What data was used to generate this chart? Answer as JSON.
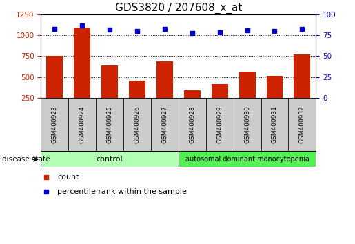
{
  "title": "GDS3820 / 207608_x_at",
  "samples": [
    "GSM400923",
    "GSM400924",
    "GSM400925",
    "GSM400926",
    "GSM400927",
    "GSM400928",
    "GSM400929",
    "GSM400930",
    "GSM400931",
    "GSM400932"
  ],
  "counts": [
    750,
    1090,
    635,
    455,
    690,
    335,
    415,
    560,
    510,
    770
  ],
  "percentiles": [
    83,
    87,
    82,
    80,
    83,
    78,
    79,
    81,
    80,
    83
  ],
  "control_samples": 5,
  "disease_samples": 5,
  "left_ylim": [
    250,
    1250
  ],
  "left_yticks": [
    250,
    500,
    750,
    1000,
    1250
  ],
  "right_ylim": [
    0,
    100
  ],
  "right_yticks": [
    0,
    25,
    50,
    75,
    100
  ],
  "bar_color": "#cc2200",
  "dot_color": "#0000cc",
  "control_label": "control",
  "disease_label": "autosomal dominant monocytopenia",
  "control_bg": "#b3ffb3",
  "disease_bg": "#55ee55",
  "sample_bg": "#cccccc",
  "legend_count_label": "count",
  "legend_percentile_label": "percentile rank within the sample",
  "disease_state_label": "disease state",
  "title_fontsize": 11,
  "tick_fontsize": 7.5,
  "sample_fontsize": 6.5,
  "label_fontsize": 8,
  "legend_fontsize": 8
}
